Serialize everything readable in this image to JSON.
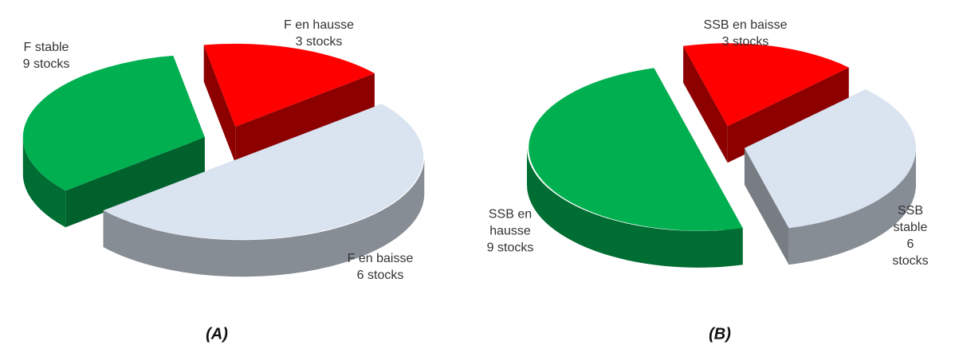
{
  "chart_data": [
    {
      "type": "pie3d",
      "title": "(A)",
      "categories": [
        "F en hausse",
        "F stable",
        "F en baisse"
      ],
      "values": [
        3,
        9,
        6
      ],
      "value_labels": [
        "3 stocks",
        "9 stocks",
        "6 stocks"
      ],
      "colors": [
        "#ff0000",
        "#dae3f0",
        "#00b050"
      ]
    },
    {
      "type": "pie3d",
      "title": "(B)",
      "categories": [
        "SSB en baisse",
        "SSB stable",
        "SSB en hausse"
      ],
      "values": [
        3,
        6,
        9
      ],
      "value_labels": [
        "3 stocks",
        "6 stocks",
        "9 stocks"
      ],
      "colors": [
        "#ff0000",
        "#dae3f0",
        "#00b050"
      ]
    }
  ]
}
